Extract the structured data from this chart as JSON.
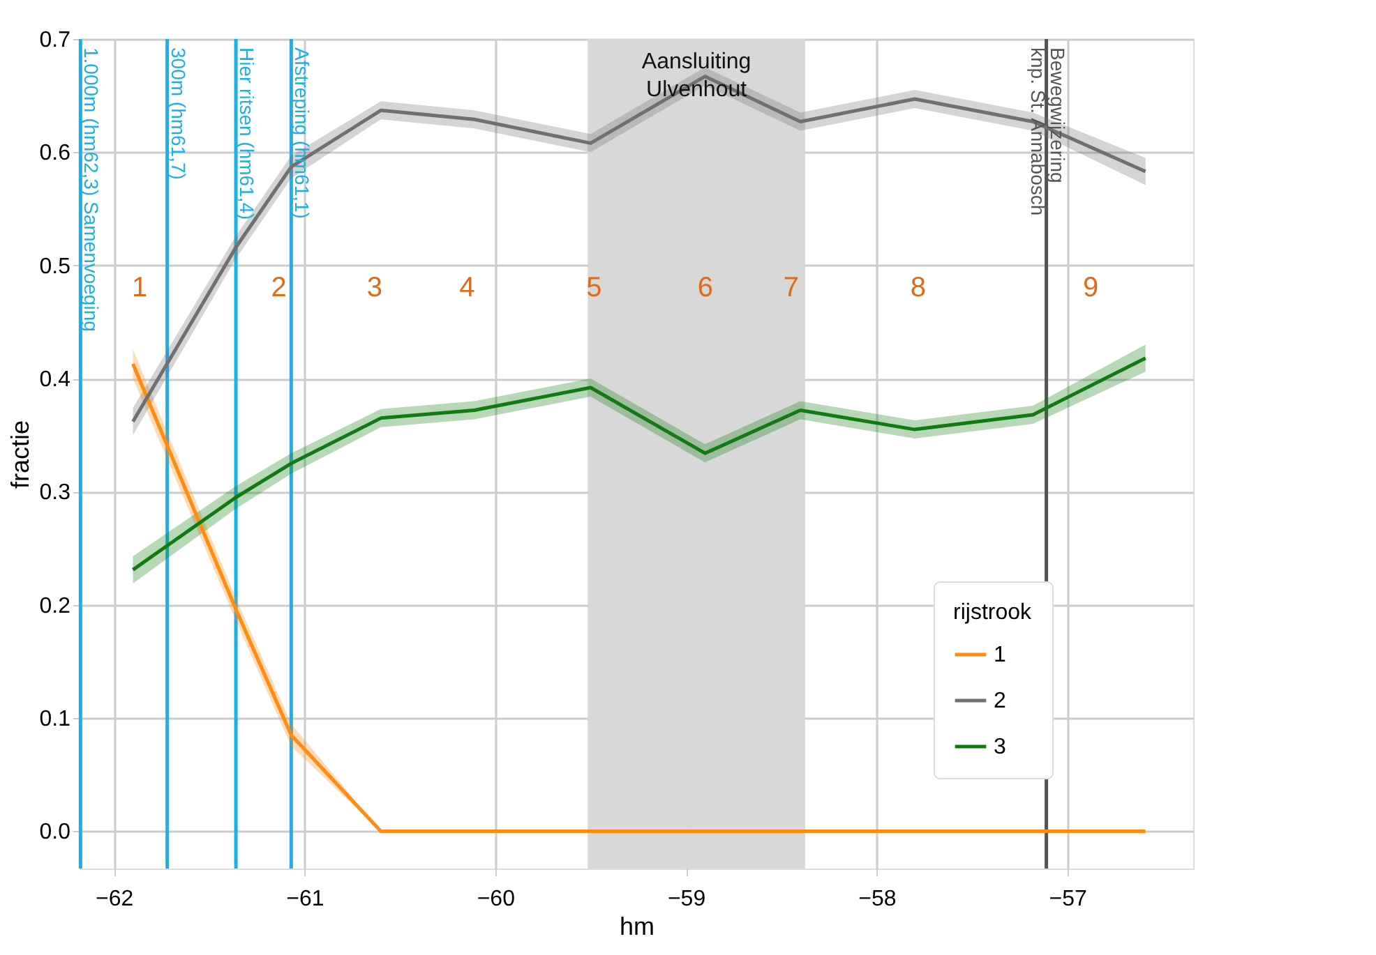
{
  "chart_data": {
    "type": "line",
    "xlabel": "hm",
    "ylabel": "fractie",
    "legend_title": "rijstrook",
    "legend": "bottom right",
    "grid": true,
    "x": [
      -61.9,
      -61.36,
      -61.07,
      -60.6,
      -60.11,
      -59.5,
      -58.9,
      -58.4,
      -57.8,
      -57.18,
      -56.59
    ],
    "series": [
      {
        "name": "1",
        "color": "#ff8c10",
        "values": [
          0.413,
          0.196,
          0.085,
          0,
          0,
          0,
          0,
          0,
          0,
          0,
          0
        ],
        "lower": [
          0.4,
          0.186,
          0.075,
          0,
          0,
          0,
          0,
          0,
          0,
          0,
          0
        ],
        "upper": [
          0.426,
          0.206,
          0.095,
          0,
          0,
          0,
          0,
          0,
          0,
          0,
          0
        ]
      },
      {
        "name": "2",
        "color": "#707070",
        "values": [
          0.362,
          0.516,
          0.587,
          0.637,
          0.629,
          0.608,
          0.667,
          0.627,
          0.647,
          0.627,
          0.583
        ],
        "lower": [
          0.35,
          0.506,
          0.577,
          0.629,
          0.621,
          0.6,
          0.659,
          0.619,
          0.639,
          0.619,
          0.571
        ],
        "upper": [
          0.374,
          0.526,
          0.597,
          0.645,
          0.637,
          0.616,
          0.675,
          0.635,
          0.655,
          0.635,
          0.595
        ]
      },
      {
        "name": "3",
        "color": "#127a12",
        "values": [
          0.231,
          0.295,
          0.325,
          0.365,
          0.372,
          0.392,
          0.334,
          0.372,
          0.355,
          0.368,
          0.418
        ],
        "lower": [
          0.219,
          0.285,
          0.316,
          0.357,
          0.364,
          0.384,
          0.326,
          0.364,
          0.347,
          0.36,
          0.406
        ],
        "upper": [
          0.243,
          0.305,
          0.334,
          0.373,
          0.38,
          0.4,
          0.342,
          0.38,
          0.363,
          0.376,
          0.43
        ]
      }
    ],
    "xlim": [
      -62.18,
      -56.34
    ],
    "ylim": [
      -0.033,
      0.7
    ],
    "xticks": [
      -62,
      -61,
      -60,
      -59,
      -58,
      -57
    ],
    "yticks": [
      {
        "value": 0,
        "label": "0.0"
      },
      0.1,
      0.2,
      0.3,
      0.4,
      0.5,
      0.6,
      0.7
    ],
    "ref_lines": [
      {
        "axis": "x",
        "value": -62.175,
        "label": "1.000m (hm62,3) Samenvoeging",
        "color": "#1ab0e8"
      },
      {
        "axis": "x",
        "value": -61.72,
        "label": "300m (hm61,7)",
        "color": "#1ab0e8"
      },
      {
        "axis": "x",
        "value": -61.36,
        "label": "Hier ritsen (hm61,4)",
        "color": "#1ab0e8"
      },
      {
        "axis": "x",
        "value": -61.07,
        "label": "Afstreping (hm61,1)",
        "color": "#1ab0e8"
      },
      {
        "axis": "x",
        "value": -57.11,
        "label": "Bewegwijzering\nknp. St. Annabosch",
        "color": "#555555"
      }
    ],
    "bands": [
      {
        "axis": "x",
        "from": -59.515,
        "to": -58.375,
        "label": "Aansluiting\nUlvenhout",
        "color": "#d6d6d6"
      }
    ],
    "annotations": [
      "1",
      "2",
      "3",
      "4",
      "5",
      "6",
      "7",
      "8",
      "9"
    ]
  }
}
